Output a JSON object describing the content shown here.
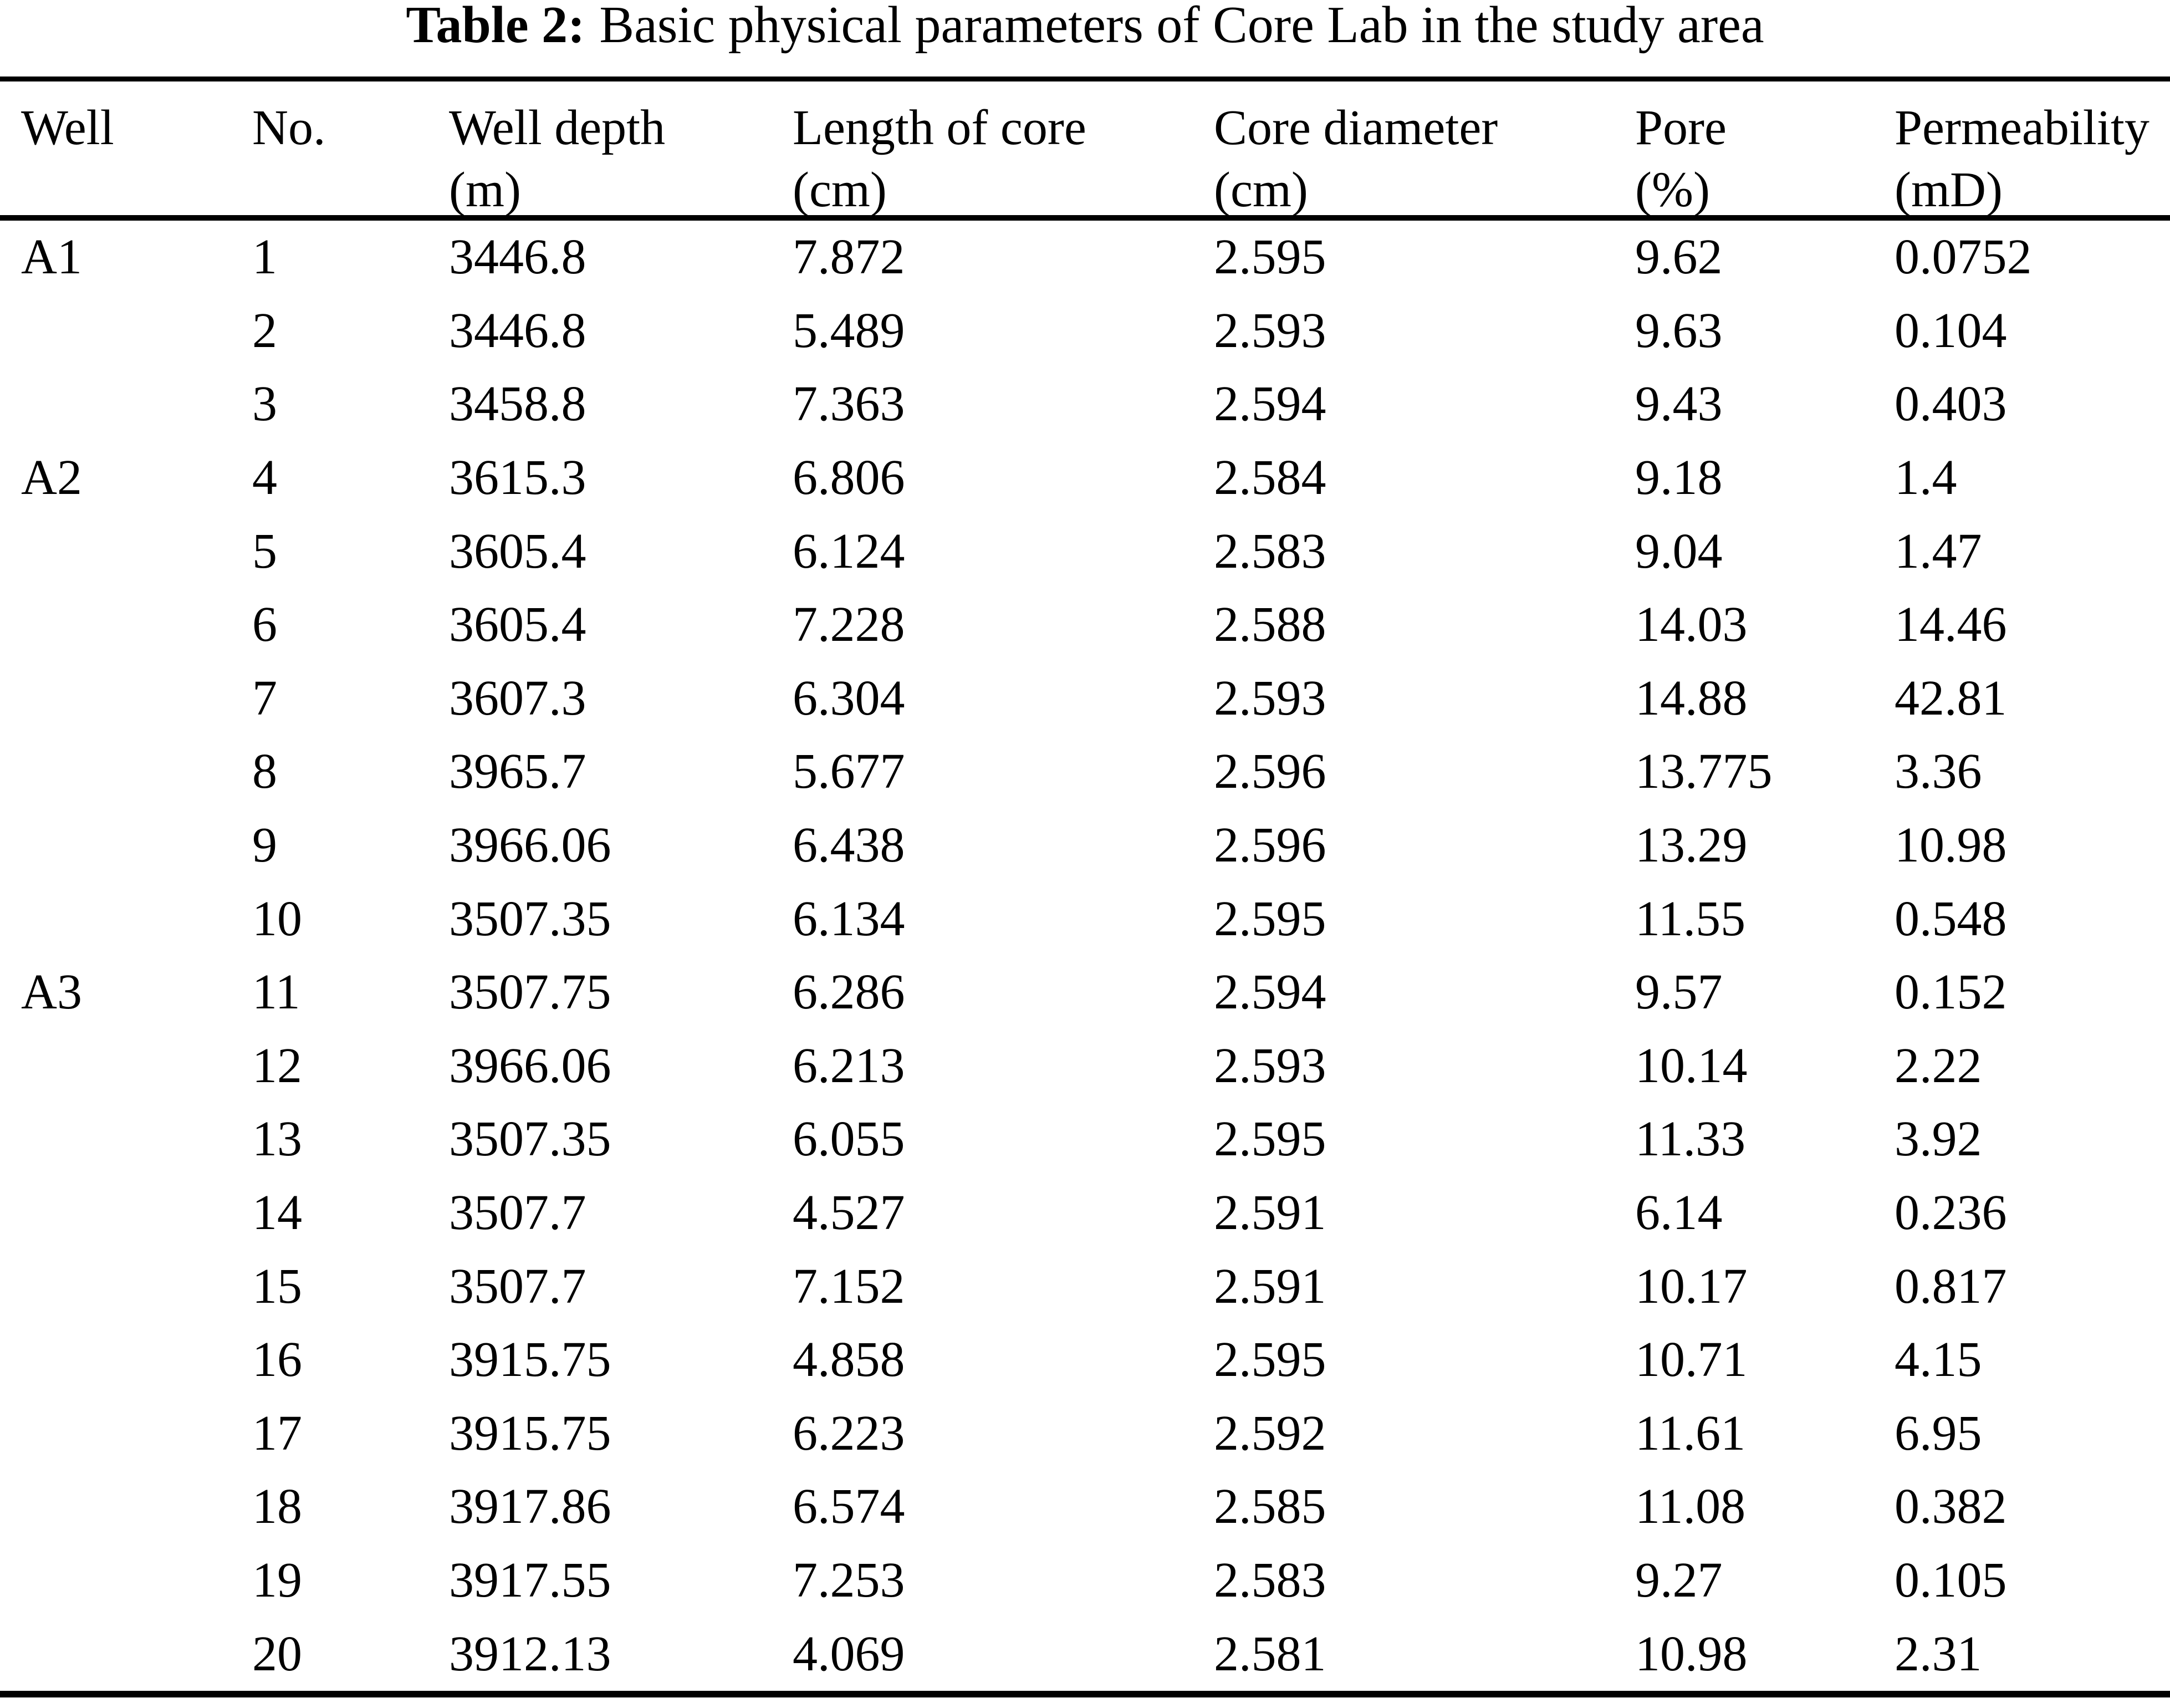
{
  "caption": {
    "label": "Table 2:",
    "text": "Basic physical parameters of Core Lab in the study area"
  },
  "table": {
    "columns": [
      {
        "label": "Well",
        "unit": ""
      },
      {
        "label": "No.",
        "unit": ""
      },
      {
        "label": "Well depth",
        "unit": "(m)"
      },
      {
        "label": "Length of core",
        "unit": "(cm)"
      },
      {
        "label": "Core diameter",
        "unit": "(cm)"
      },
      {
        "label": "Pore",
        "unit": "(%)"
      },
      {
        "label": "Permeability",
        "unit": "(mD)"
      }
    ],
    "rows": [
      [
        "A1",
        "1",
        "3446.8",
        "7.872",
        "2.595",
        "9.62",
        "0.0752"
      ],
      [
        "",
        "2",
        "3446.8",
        "5.489",
        "2.593",
        "9.63",
        "0.104"
      ],
      [
        "",
        "3",
        "3458.8",
        "7.363",
        "2.594",
        "9.43",
        "0.403"
      ],
      [
        "A2",
        "4",
        "3615.3",
        "6.806",
        "2.584",
        "9.18",
        "1.4"
      ],
      [
        "",
        "5",
        "3605.4",
        "6.124",
        "2.583",
        "9.04",
        "1.47"
      ],
      [
        "",
        "6",
        "3605.4",
        "7.228",
        "2.588",
        "14.03",
        "14.46"
      ],
      [
        "",
        "7",
        "3607.3",
        "6.304",
        "2.593",
        "14.88",
        "42.81"
      ],
      [
        "",
        "8",
        "3965.7",
        "5.677",
        "2.596",
        "13.775",
        "3.36"
      ],
      [
        "",
        "9",
        "3966.06",
        "6.438",
        "2.596",
        "13.29",
        "10.98"
      ],
      [
        "",
        "10",
        "3507.35",
        "6.134",
        "2.595",
        "11.55",
        "0.548"
      ],
      [
        "A3",
        "11",
        "3507.75",
        "6.286",
        "2.594",
        "9.57",
        "0.152"
      ],
      [
        "",
        "12",
        "3966.06",
        "6.213",
        "2.593",
        "10.14",
        "2.22"
      ],
      [
        "",
        "13",
        "3507.35",
        "6.055",
        "2.595",
        "11.33",
        "3.92"
      ],
      [
        "",
        "14",
        "3507.7",
        "4.527",
        "2.591",
        "6.14",
        "0.236"
      ],
      [
        "",
        "15",
        "3507.7",
        "7.152",
        "2.591",
        "10.17",
        "0.817"
      ],
      [
        "",
        "16",
        "3915.75",
        "4.858",
        "2.595",
        "10.71",
        "4.15"
      ],
      [
        "",
        "17",
        "3915.75",
        "6.223",
        "2.592",
        "11.61",
        "6.95"
      ],
      [
        "",
        "18",
        "3917.86",
        "6.574",
        "2.585",
        "11.08",
        "0.382"
      ],
      [
        "",
        "19",
        "3917.55",
        "7.253",
        "2.583",
        "9.27",
        "0.105"
      ],
      [
        "",
        "20",
        "3912.13",
        "4.069",
        "2.581",
        "10.98",
        "2.31"
      ]
    ]
  },
  "colors": {
    "background": "#ffffff",
    "text": "#000000",
    "rule": "#000000"
  }
}
